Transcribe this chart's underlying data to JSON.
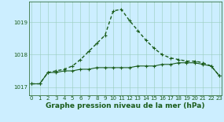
{
  "hours": [
    0,
    1,
    2,
    3,
    4,
    5,
    6,
    7,
    8,
    9,
    10,
    11,
    12,
    13,
    14,
    15,
    16,
    17,
    18,
    19,
    20,
    21,
    22,
    23
  ],
  "line_peak": [
    1017.1,
    1017.1,
    1017.45,
    1017.5,
    1017.55,
    1017.65,
    1017.85,
    1018.1,
    1018.35,
    1018.6,
    1019.35,
    1019.4,
    1019.05,
    1018.75,
    1018.45,
    1018.2,
    1018.0,
    1017.9,
    1017.85,
    1017.8,
    1017.8,
    1017.75,
    1017.65,
    1017.35
  ],
  "line_flat": [
    1017.1,
    1017.1,
    1017.45,
    1017.45,
    1017.5,
    1017.5,
    1017.55,
    1017.55,
    1017.6,
    1017.6,
    1017.6,
    1017.6,
    1017.6,
    1017.65,
    1017.65,
    1017.65,
    1017.7,
    1017.7,
    1017.75,
    1017.75,
    1017.75,
    1017.7,
    1017.65,
    1017.35
  ],
  "bg_color": "#cceeff",
  "grid_color": "#99ccbb",
  "line_color": "#1a5c1a",
  "marker": "+",
  "markersize": 3,
  "markeredgewidth": 0.8,
  "linewidth_peak": 1.0,
  "linewidth_flat": 0.8,
  "xlabel": "Graphe pression niveau de la mer (hPa)",
  "xticks": [
    0,
    1,
    2,
    3,
    4,
    5,
    6,
    7,
    8,
    9,
    10,
    11,
    12,
    13,
    14,
    15,
    16,
    17,
    18,
    19,
    20,
    21,
    22,
    23
  ],
  "yticks": [
    1017,
    1018,
    1019
  ],
  "ylim": [
    1016.75,
    1019.65
  ],
  "xlim": [
    -0.3,
    23.3
  ],
  "tick_fontsize": 5.0,
  "xlabel_fontsize": 6.5,
  "xlabel_fontweight": "bold"
}
